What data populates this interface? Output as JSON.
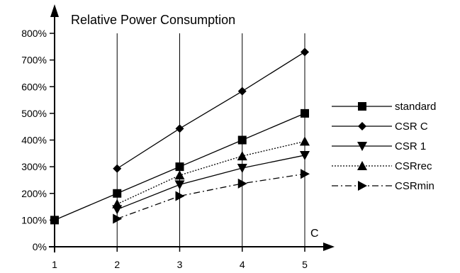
{
  "chart_data": {
    "type": "line",
    "title": "Relative Power Consumption",
    "x_axis_variable": "C",
    "xlabel": "",
    "ylabel": "",
    "x": [
      1,
      2,
      3,
      4,
      5
    ],
    "xlim": [
      1,
      5
    ],
    "ylim": [
      0,
      800
    ],
    "y_ticks": [
      "0%",
      "100%",
      "200%",
      "300%",
      "400%",
      "500%",
      "600%",
      "700%",
      "800%"
    ],
    "x_ticks": [
      "1",
      "2",
      "3",
      "4",
      "5"
    ],
    "grid": "vertical",
    "legend_position": "right",
    "series": [
      {
        "name": "standard",
        "marker": "square",
        "dash": "solid",
        "points": [
          [
            1,
            100
          ],
          [
            2,
            200
          ],
          [
            3,
            300
          ],
          [
            4,
            400
          ],
          [
            5,
            500
          ]
        ]
      },
      {
        "name": "CSR C",
        "marker": "diamond",
        "dash": "solid",
        "points": [
          [
            2,
            293
          ],
          [
            3,
            443
          ],
          [
            4,
            583
          ],
          [
            5,
            730
          ]
        ]
      },
      {
        "name": "CSR 1",
        "marker": "triangle-down",
        "dash": "solid",
        "points": [
          [
            2,
            140
          ],
          [
            3,
            233
          ],
          [
            4,
            295
          ],
          [
            5,
            343
          ]
        ]
      },
      {
        "name": "CSRrec",
        "marker": "triangle-up",
        "dash": "dotted",
        "points": [
          [
            2,
            160
          ],
          [
            3,
            268
          ],
          [
            4,
            340
          ],
          [
            5,
            395
          ]
        ]
      },
      {
        "name": "CSRmin",
        "marker": "triangle-right",
        "dash": "dashdot",
        "points": [
          [
            2,
            105
          ],
          [
            3,
            190
          ],
          [
            4,
            237
          ],
          [
            5,
            273
          ]
        ]
      }
    ],
    "colors": {
      "line": "#000000",
      "grid": "#000000"
    }
  }
}
